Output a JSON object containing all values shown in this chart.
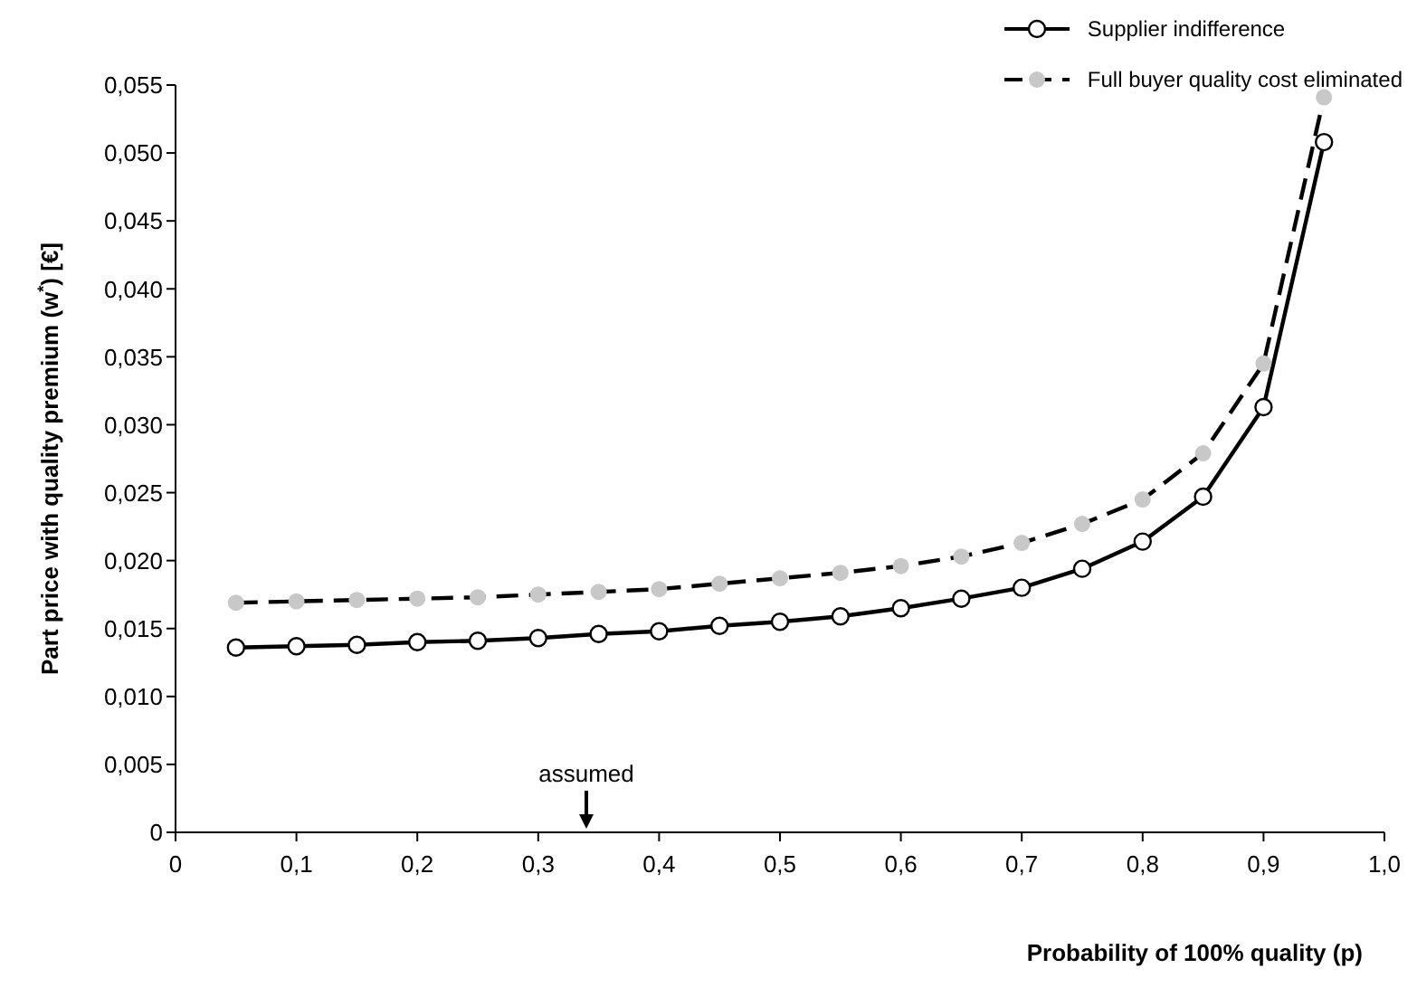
{
  "chart_data": {
    "type": "line",
    "xlabel": "Probability of 100% quality (p)",
    "ylabel": "Part price with quality premium (w$^{*}$) [€]",
    "x": [
      0.05,
      0.1,
      0.15,
      0.2,
      0.25,
      0.3,
      0.35,
      0.4,
      0.45,
      0.5,
      0.55,
      0.6,
      0.65,
      0.7,
      0.75,
      0.8,
      0.85,
      0.9,
      0.95
    ],
    "series": [
      {
        "name": "Supplier indifference",
        "color": "#000000",
        "line_style": "solid",
        "values": [
          0.0136,
          0.0137,
          0.0138,
          0.014,
          0.0141,
          0.0143,
          0.0146,
          0.0148,
          0.0152,
          0.0155,
          0.0159,
          0.0165,
          0.0172,
          0.018,
          0.0194,
          0.0214,
          0.0247,
          0.0313,
          0.0508
        ]
      },
      {
        "name": "Full buyer quality cost eliminated",
        "color": "#c8c8c8",
        "line_style": "dashed",
        "values": [
          0.0169,
          0.017,
          0.0171,
          0.0172,
          0.0173,
          0.0175,
          0.0177,
          0.0179,
          0.0183,
          0.0187,
          0.0191,
          0.0196,
          0.0203,
          0.0213,
          0.0227,
          0.0245,
          0.0279,
          0.0345,
          0.0541
        ]
      }
    ],
    "xlim": [
      0,
      1
    ],
    "xticks": [
      0,
      {
        "value": 0.1,
        "label": "0,1"
      },
      {
        "value": 0.2,
        "label": "0,2"
      },
      {
        "value": 0.3,
        "label": "0,3"
      },
      {
        "value": 0.4,
        "label": "0,4"
      },
      {
        "value": 0.5,
        "label": "0,5"
      },
      {
        "value": 0.6,
        "label": "0,6"
      },
      {
        "value": 0.7,
        "label": "0,7"
      },
      {
        "value": 0.8,
        "label": "0,8"
      },
      {
        "value": 0.9,
        "label": "0,9"
      },
      {
        "value": 1,
        "label": "1,0"
      }
    ],
    "ylim": [
      0,
      0.055
    ],
    "yticks": [
      0,
      {
        "value": 0.005,
        "label": "0,005"
      },
      {
        "value": 0.01,
        "label": "0,010"
      },
      {
        "value": 0.015,
        "label": "0,015"
      },
      {
        "value": 0.02,
        "label": "0,020"
      },
      {
        "value": 0.025,
        "label": "0,025"
      },
      {
        "value": 0.03,
        "label": "0,030"
      },
      {
        "value": 0.035,
        "label": "0,035"
      },
      {
        "value": 0.04,
        "label": "0,040"
      },
      {
        "value": 0.045,
        "label": "0,045"
      },
      {
        "value": 0.05,
        "label": "0,050"
      },
      {
        "value": 0.055,
        "label": "0,055"
      }
    ],
    "annotations": [
      "assumed"
    ],
    "marker": "circle",
    "grid": false,
    "legend": "top right"
  }
}
